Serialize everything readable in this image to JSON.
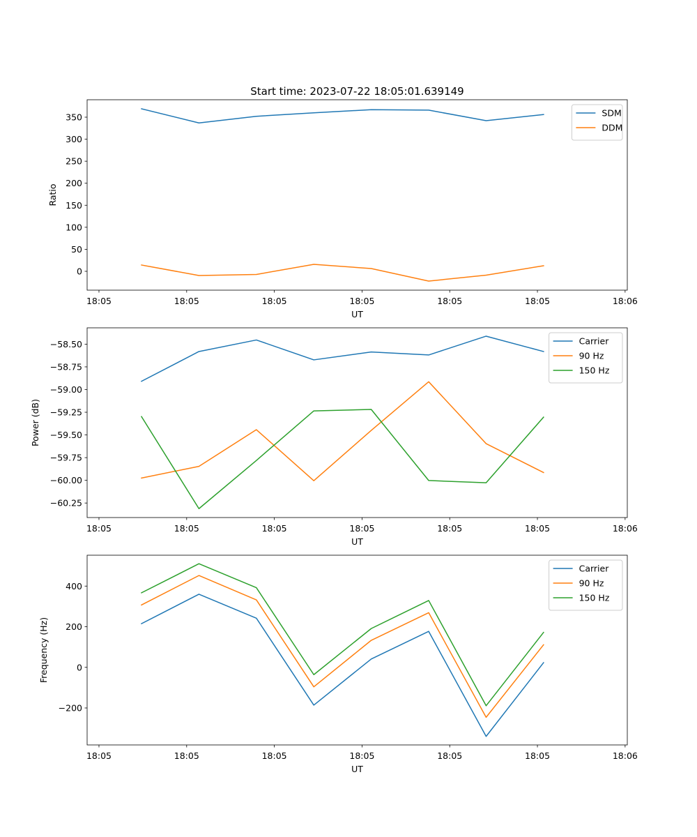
{
  "figure": {
    "suptitle": "Start time: 2023-07-22 18:05:01.639149"
  },
  "chart_data": [
    {
      "type": "line",
      "title": "Start time: 2023-07-22 18:05:01.639149",
      "xlabel": "UT",
      "ylabel": "Ratio",
      "x_unit": "seconds after 18:05:00",
      "x": [
        4.85,
        11.4,
        17.95,
        24.5,
        31.05,
        37.6,
        44.15,
        50.7
      ],
      "xlim": [
        -1.35,
        60.25
      ],
      "x_ticks": [
        0,
        10,
        20,
        30,
        40,
        50,
        60
      ],
      "x_tick_labels": [
        "18:05",
        "18:05",
        "18:05",
        "18:05",
        "18:05",
        "18:05",
        "18:06"
      ],
      "ylim": [
        -42.8,
        389.6
      ],
      "y_ticks": [
        0,
        50,
        100,
        150,
        200,
        250,
        300,
        350
      ],
      "y_tick_labels": [
        "0",
        "50",
        "100",
        "150",
        "200",
        "250",
        "300",
        "350"
      ],
      "grid": false,
      "legend_position": "top-right",
      "series": [
        {
          "name": "SDM",
          "color": "#1f77b4",
          "values": [
            369,
            337,
            352,
            360,
            367,
            366,
            342,
            356
          ]
        },
        {
          "name": "DDM",
          "color": "#ff7f0e",
          "values": [
            14.3,
            -9.5,
            -7.1,
            15.8,
            6.3,
            -22.2,
            -8.7,
            12.7
          ]
        }
      ]
    },
    {
      "type": "line",
      "title": "",
      "xlabel": "UT",
      "ylabel": "Power (dB)",
      "x_unit": "seconds after 18:05:00",
      "x": [
        4.85,
        11.4,
        17.95,
        24.5,
        31.05,
        37.6,
        44.15,
        50.7
      ],
      "xlim": [
        -1.35,
        60.25
      ],
      "x_ticks": [
        0,
        10,
        20,
        30,
        40,
        50,
        60
      ],
      "x_tick_labels": [
        "18:05",
        "18:05",
        "18:05",
        "18:05",
        "18:05",
        "18:05",
        "18:06"
      ],
      "ylim": [
        -60.41,
        -58.32
      ],
      "y_ticks": [
        -58.5,
        -58.75,
        -59.0,
        -59.25,
        -59.5,
        -59.75,
        -60.0,
        -60.25
      ],
      "y_tick_labels": [
        "−58.50",
        "−58.75",
        "−59.00",
        "−59.25",
        "−59.50",
        "−59.75",
        "−60.00",
        "−60.25"
      ],
      "grid": false,
      "legend_position": "top-right",
      "series": [
        {
          "name": "Carrier",
          "color": "#1f77b4",
          "values": [
            -58.909,
            -58.581,
            -58.454,
            -58.673,
            -58.586,
            -58.619,
            -58.412,
            -58.581
          ]
        },
        {
          "name": "90 Hz",
          "color": "#ff7f0e",
          "values": [
            -59.975,
            -59.846,
            -59.442,
            -60.004,
            -59.45,
            -58.914,
            -59.596,
            -59.914
          ]
        },
        {
          "name": "150 Hz",
          "color": "#2ca02c",
          "values": [
            -59.298,
            -60.312,
            -59.781,
            -59.235,
            -59.219,
            -60.002,
            -60.027,
            -59.304
          ]
        }
      ]
    },
    {
      "type": "line",
      "title": "",
      "xlabel": "UT",
      "ylabel": "Frequency (Hz)",
      "x_unit": "seconds after 18:05:00",
      "x": [
        4.85,
        11.4,
        17.95,
        24.5,
        31.05,
        37.6,
        44.15,
        50.7
      ],
      "xlim": [
        -1.35,
        60.25
      ],
      "x_ticks": [
        0,
        10,
        20,
        30,
        40,
        50,
        60
      ],
      "x_tick_labels": [
        "18:05",
        "18:05",
        "18:05",
        "18:05",
        "18:05",
        "18:05",
        "18:06"
      ],
      "ylim": [
        -382,
        552
      ],
      "y_ticks": [
        -200,
        0,
        200,
        400
      ],
      "y_tick_labels": [
        "−200",
        "0",
        "200",
        "400"
      ],
      "grid": false,
      "legend_position": "top-right",
      "series": [
        {
          "name": "Carrier",
          "color": "#1f77b4",
          "values": [
            215,
            360,
            242,
            -186,
            41,
            177,
            -340,
            23
          ]
        },
        {
          "name": "90 Hz",
          "color": "#ff7f0e",
          "values": [
            307,
            452,
            332,
            -96,
            133,
            269,
            -246,
            111
          ]
        },
        {
          "name": "150 Hz",
          "color": "#2ca02c",
          "values": [
            367,
            510,
            392,
            -36,
            191,
            329,
            -189,
            172
          ]
        }
      ]
    }
  ]
}
